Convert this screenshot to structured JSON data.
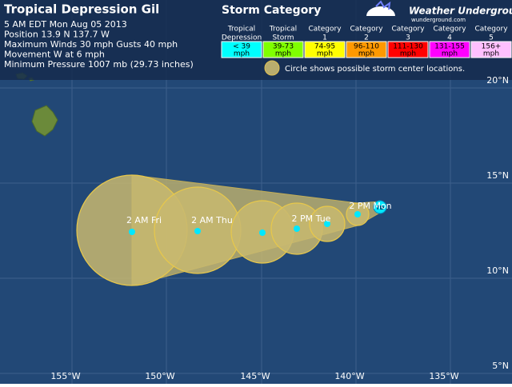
{
  "header": {
    "title": "Tropical Depression Gil",
    "lines": [
      "5 AM EDT Mon Aug 05 2013",
      "Position 13.9 N 137.7 W",
      "Maximum Winds 30 mph  Gusts 40 mph",
      "Movement W at 6 mph",
      "Minimum Pressure 1007 mb (29.73 inches)"
    ]
  },
  "legend": {
    "title": "Storm Category",
    "categories": [
      {
        "name": [
          "Tropical",
          "Depression"
        ],
        "range": [
          "< 39",
          "mph"
        ],
        "color": "#00ffff"
      },
      {
        "name": [
          "Tropical",
          "Storm"
        ],
        "range": [
          "39-73",
          "mph"
        ],
        "color": "#7fff00"
      },
      {
        "name": [
          "Category",
          "1"
        ],
        "range": [
          "74-95",
          "mph"
        ],
        "color": "#ffff00"
      },
      {
        "name": [
          "Category",
          "2"
        ],
        "range": [
          "96-110",
          "mph"
        ],
        "color": "#ff9900"
      },
      {
        "name": [
          "Category",
          "3"
        ],
        "range": [
          "111-130",
          "mph"
        ],
        "color": "#ff0000"
      },
      {
        "name": [
          "Category",
          "4"
        ],
        "range": [
          "131-155",
          "mph"
        ],
        "color": "#ff00ff"
      },
      {
        "name": [
          "Category",
          "5"
        ],
        "range": [
          "156+",
          "mph"
        ],
        "color": "#ffc0ff"
      }
    ],
    "note": "Circle shows possible storm center locations."
  },
  "brand": {
    "name": "Weather Underground",
    "url": "wunderground.com"
  },
  "map": {
    "lat_labels": [
      "20°N",
      "15°N",
      "10°N",
      "5°N"
    ],
    "lon_labels": [
      "155°W",
      "150°W",
      "145°W",
      "140°W",
      "135°W"
    ],
    "current_marker": "TD",
    "forecast_labels": [
      "2 AM Fri",
      "2 AM Thu",
      "2 PM Tue",
      "2 PM Mon"
    ]
  }
}
